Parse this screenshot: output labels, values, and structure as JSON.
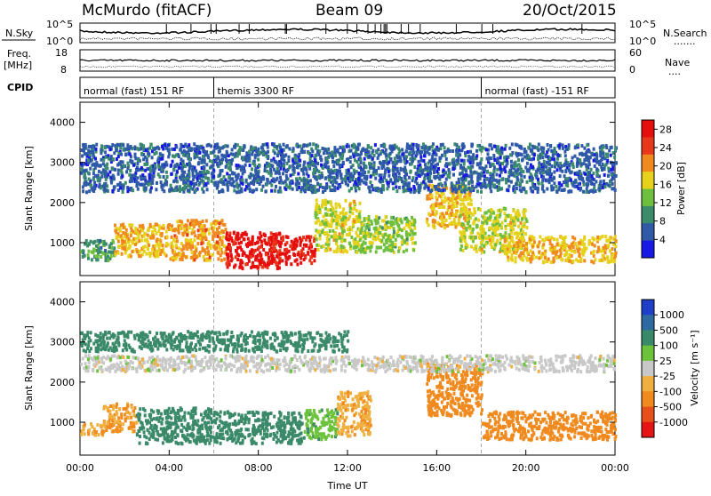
{
  "header": {
    "station": "McMurdo (fitACF)",
    "beam": "Beam 09",
    "date": "20/Oct/2015"
  },
  "sky_panel": {
    "left_label": "N.Sky",
    "left_ticks": [
      "10^5",
      "10^0"
    ],
    "right_ticks": [
      "10^5",
      "10^0"
    ],
    "right_label": "N.Search",
    "right_dots": "......."
  },
  "freq_panel": {
    "left_label_1": "Freq.",
    "left_label_2": "[MHz]",
    "left_ticks": [
      "18",
      "8"
    ],
    "right_ticks": [
      "60",
      "0"
    ],
    "right_label": "Nave",
    "right_dots": "...."
  },
  "cpid": {
    "label": "CPID",
    "segments": [
      {
        "text": "normal (fast) 151 RF",
        "start_hour": 0
      },
      {
        "text": "themis 3300 RF",
        "start_hour": 6
      },
      {
        "text": "normal (fast) -151 RF",
        "start_hour": 18
      }
    ]
  },
  "colors": {
    "power_scale": [
      "#1919e6",
      "#2e5aa8",
      "#3a8c6a",
      "#6fbf3e",
      "#e6d21a",
      "#f08a1e",
      "#e8381a",
      "#e60d0d"
    ],
    "velocity_scale": [
      "#1f3fc8",
      "#2e6aa0",
      "#3a8a6a",
      "#6cc23a",
      "#c8c8c8",
      "#f0b040",
      "#f08a1e",
      "#e8501a",
      "#e61414"
    ]
  },
  "chart_data": [
    {
      "type": "heatmap",
      "title": "",
      "xlabel": "Time UT",
      "ylabel": "Slant Range [km]",
      "x_ticks": [
        "00:00",
        "04:00",
        "08:00",
        "12:00",
        "16:00",
        "20:00",
        "00:00"
      ],
      "xlim_hours": [
        0,
        24
      ],
      "y_ticks": [
        "1000",
        "2000",
        "3000",
        "4000"
      ],
      "ylim_km": [
        180,
        4500
      ],
      "colorbar": {
        "label": "Power [dB]",
        "ticks": [
          "4",
          "8",
          "12",
          "16",
          "20",
          "24",
          "28"
        ],
        "range": [
          0,
          30
        ]
      },
      "regions": [
        {
          "t0": 0.0,
          "t1": 1.5,
          "r0": 600,
          "r1": 1100,
          "value": 10
        },
        {
          "t0": 1.5,
          "t1": 4.0,
          "r0": 700,
          "r1": 1500,
          "value": 18
        },
        {
          "t0": 4.0,
          "t1": 6.5,
          "r0": 600,
          "r1": 1600,
          "value": 20
        },
        {
          "t0": 6.5,
          "t1": 9.0,
          "r0": 400,
          "r1": 1300,
          "value": 28
        },
        {
          "t0": 8.5,
          "t1": 10.5,
          "r0": 500,
          "r1": 1200,
          "value": 27
        },
        {
          "t0": 10.5,
          "t1": 12.5,
          "r0": 800,
          "r1": 2100,
          "value": 16
        },
        {
          "t0": 12.5,
          "t1": 15.0,
          "r0": 800,
          "r1": 1700,
          "value": 14
        },
        {
          "t0": 15.5,
          "t1": 17.5,
          "r0": 1400,
          "r1": 2500,
          "value": 18
        },
        {
          "t0": 17.0,
          "t1": 20.0,
          "r0": 800,
          "r1": 1900,
          "value": 16
        },
        {
          "t0": 19.0,
          "t1": 24.0,
          "r0": 550,
          "r1": 1200,
          "value": 18
        },
        {
          "t0": 0.0,
          "t1": 24.0,
          "r0": 2300,
          "r1": 3500,
          "value": 6
        }
      ]
    },
    {
      "type": "heatmap",
      "title": "",
      "xlabel": "Time UT",
      "ylabel": "Slant Range [km]",
      "x_ticks": [
        "00:00",
        "04:00",
        "08:00",
        "12:00",
        "16:00",
        "20:00",
        "00:00"
      ],
      "xlim_hours": [
        0,
        24
      ],
      "y_ticks": [
        "1000",
        "2000",
        "3000",
        "4000"
      ],
      "ylim_km": [
        180,
        4500
      ],
      "colorbar": {
        "label": "Velocity [m s⁻¹]",
        "ticks": [
          "1000",
          "500",
          "100",
          "25",
          "-25",
          "-100",
          "-500",
          "-1000"
        ],
        "range": [
          -1000,
          1000
        ]
      },
      "regions": [
        {
          "t0": 0.0,
          "t1": 1.0,
          "r0": 700,
          "r1": 1000,
          "value": -100
        },
        {
          "t0": 1.0,
          "t1": 2.5,
          "r0": 800,
          "r1": 1500,
          "value": -100
        },
        {
          "t0": 2.5,
          "t1": 6.0,
          "r0": 500,
          "r1": 1400,
          "value": 300
        },
        {
          "t0": 6.0,
          "t1": 10.0,
          "r0": 500,
          "r1": 1300,
          "value": 350
        },
        {
          "t0": 10.0,
          "t1": 11.5,
          "r0": 600,
          "r1": 1400,
          "value": 80
        },
        {
          "t0": 11.5,
          "t1": 13.0,
          "r0": 700,
          "r1": 1800,
          "value": -80
        },
        {
          "t0": 15.5,
          "t1": 18.0,
          "r0": 1200,
          "r1": 2500,
          "value": -150
        },
        {
          "t0": 18.0,
          "t1": 24.0,
          "r0": 600,
          "r1": 1300,
          "value": -150
        },
        {
          "t0": 0.0,
          "t1": 24.0,
          "r0": 2300,
          "r1": 2700,
          "value": 0
        },
        {
          "t0": 0.0,
          "t1": 12.0,
          "r0": 2800,
          "r1": 3300,
          "value": 200
        }
      ]
    }
  ],
  "time_axis_label": "Time UT"
}
